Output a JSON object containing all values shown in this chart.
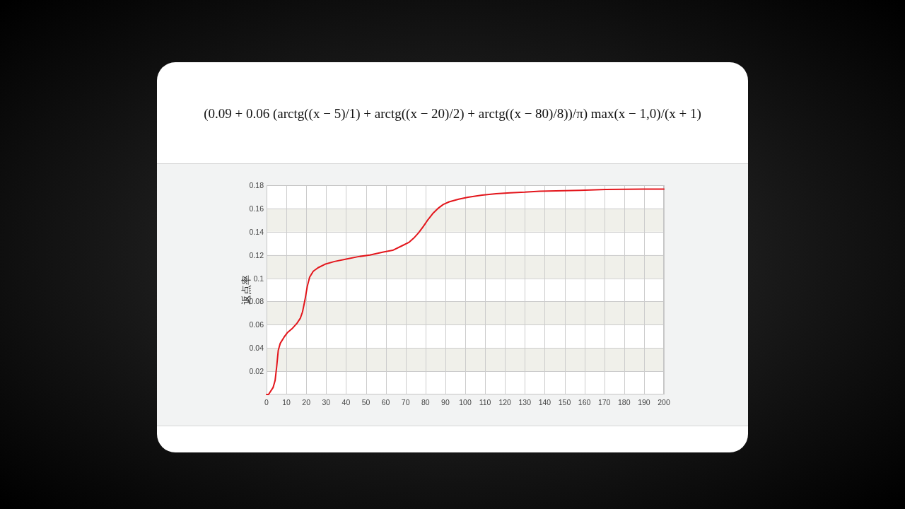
{
  "chart_data": {
    "type": "line",
    "title": "(0.09 + 0.06 (arctg((x − 5)/1) + arctg((x − 20)/2) + arctg((x − 80)/8))/π) max(x − 1,0)/(x + 1)",
    "ylabel": "返点率",
    "series": [
      {
        "color": "#e3161c",
        "x": [
          0,
          1,
          3.3,
          4.3,
          5.1,
          5.9,
          6.9,
          8.7,
          10.4,
          12.8,
          15.2,
          17,
          18.1,
          19.3,
          20.5,
          21.7,
          23.5,
          25.9,
          29.4,
          34.2,
          40.1,
          46,
          52,
          58.8,
          63.5,
          68.3,
          71.8,
          74.1,
          76.5,
          78.9,
          81.3,
          83.6,
          86.6,
          89,
          91.9,
          96.7,
          101.4,
          108.5,
          115.6,
          122.7,
          130,
          137.5,
          145.8,
          157.7,
          170.7,
          189.7,
          200
        ],
        "values": [
          0,
          0,
          0.006,
          0.012,
          0.024,
          0.038,
          0.044,
          0.049,
          0.053,
          0.0565,
          0.061,
          0.0656,
          0.071,
          0.081,
          0.093,
          0.101,
          0.106,
          0.109,
          0.112,
          0.1144,
          0.1165,
          0.1185,
          0.12,
          0.1225,
          0.124,
          0.128,
          0.131,
          0.1345,
          0.139,
          0.1445,
          0.1505,
          0.1555,
          0.1605,
          0.1635,
          0.1657,
          0.168,
          0.1697,
          0.1715,
          0.1727,
          0.1735,
          0.174,
          0.1748,
          0.1752,
          0.1756,
          0.1763,
          0.1767,
          0.1767
        ]
      }
    ],
    "xlim": [
      0,
      200
    ],
    "xticks": [
      0,
      10,
      20,
      30,
      40,
      50,
      60,
      70,
      80,
      90,
      100,
      110,
      120,
      130,
      140,
      150,
      160,
      170,
      180,
      190,
      200
    ],
    "ylim": [
      0,
      0.18
    ],
    "yticks": [
      0.02,
      0.04,
      0.06,
      0.08,
      0.1,
      0.12,
      0.14,
      0.16,
      0.18
    ],
    "grid": true,
    "bands": [
      {
        "axis": "y",
        "from": 0.02,
        "to": 0.04,
        "color": "#f0f0ea"
      },
      {
        "axis": "y",
        "from": 0.06,
        "to": 0.08,
        "color": "#f0f0ea"
      },
      {
        "axis": "y",
        "from": 0.1,
        "to": 0.12,
        "color": "#f0f0ea"
      },
      {
        "axis": "y",
        "from": 0.14,
        "to": 0.16,
        "color": "#f0f0ea"
      }
    ]
  }
}
